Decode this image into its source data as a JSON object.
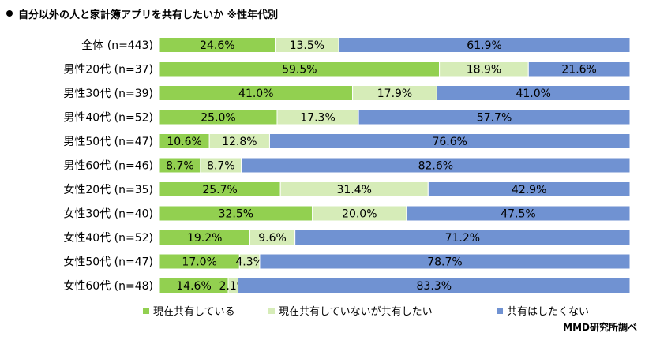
{
  "title": "自分以外の人と家計簿アプリを共有したいか ※性年代別",
  "source": "MMD研究所調べ",
  "chart_data": {
    "type": "bar",
    "orientation": "horizontal",
    "stacked": "percent",
    "title": "自分以外の人と家計簿アプリを共有したいか ※性年代別",
    "xlim": [
      0,
      100
    ],
    "grid": false,
    "legend_position": "bottom",
    "categories": [
      "全体 (n=443)",
      "男性20代 (n=37)",
      "男性30代 (n=39)",
      "男性40代 (n=52)",
      "男性50代 (n=47)",
      "男性60代 (n=46)",
      "女性20代 (n=35)",
      "女性30代 (n=40)",
      "女性40代 (n=52)",
      "女性50代 (n=47)",
      "女性60代 (n=48)"
    ],
    "series": [
      {
        "name": "現在共有している",
        "color": "#92d050",
        "values": [
          24.6,
          59.5,
          41.0,
          25.0,
          10.6,
          8.7,
          25.7,
          32.5,
          19.2,
          17.0,
          14.6
        ]
      },
      {
        "name": "現在共有していないが共有したい",
        "color": "#d6ecb8",
        "values": [
          13.5,
          18.9,
          17.9,
          17.3,
          12.8,
          8.7,
          31.4,
          20.0,
          9.6,
          4.3,
          2.1
        ]
      },
      {
        "name": "共有はしたくない",
        "color": "#7092d2",
        "values": [
          61.9,
          21.6,
          41.0,
          57.7,
          76.6,
          82.6,
          42.9,
          47.5,
          71.2,
          78.7,
          83.3
        ]
      }
    ]
  }
}
